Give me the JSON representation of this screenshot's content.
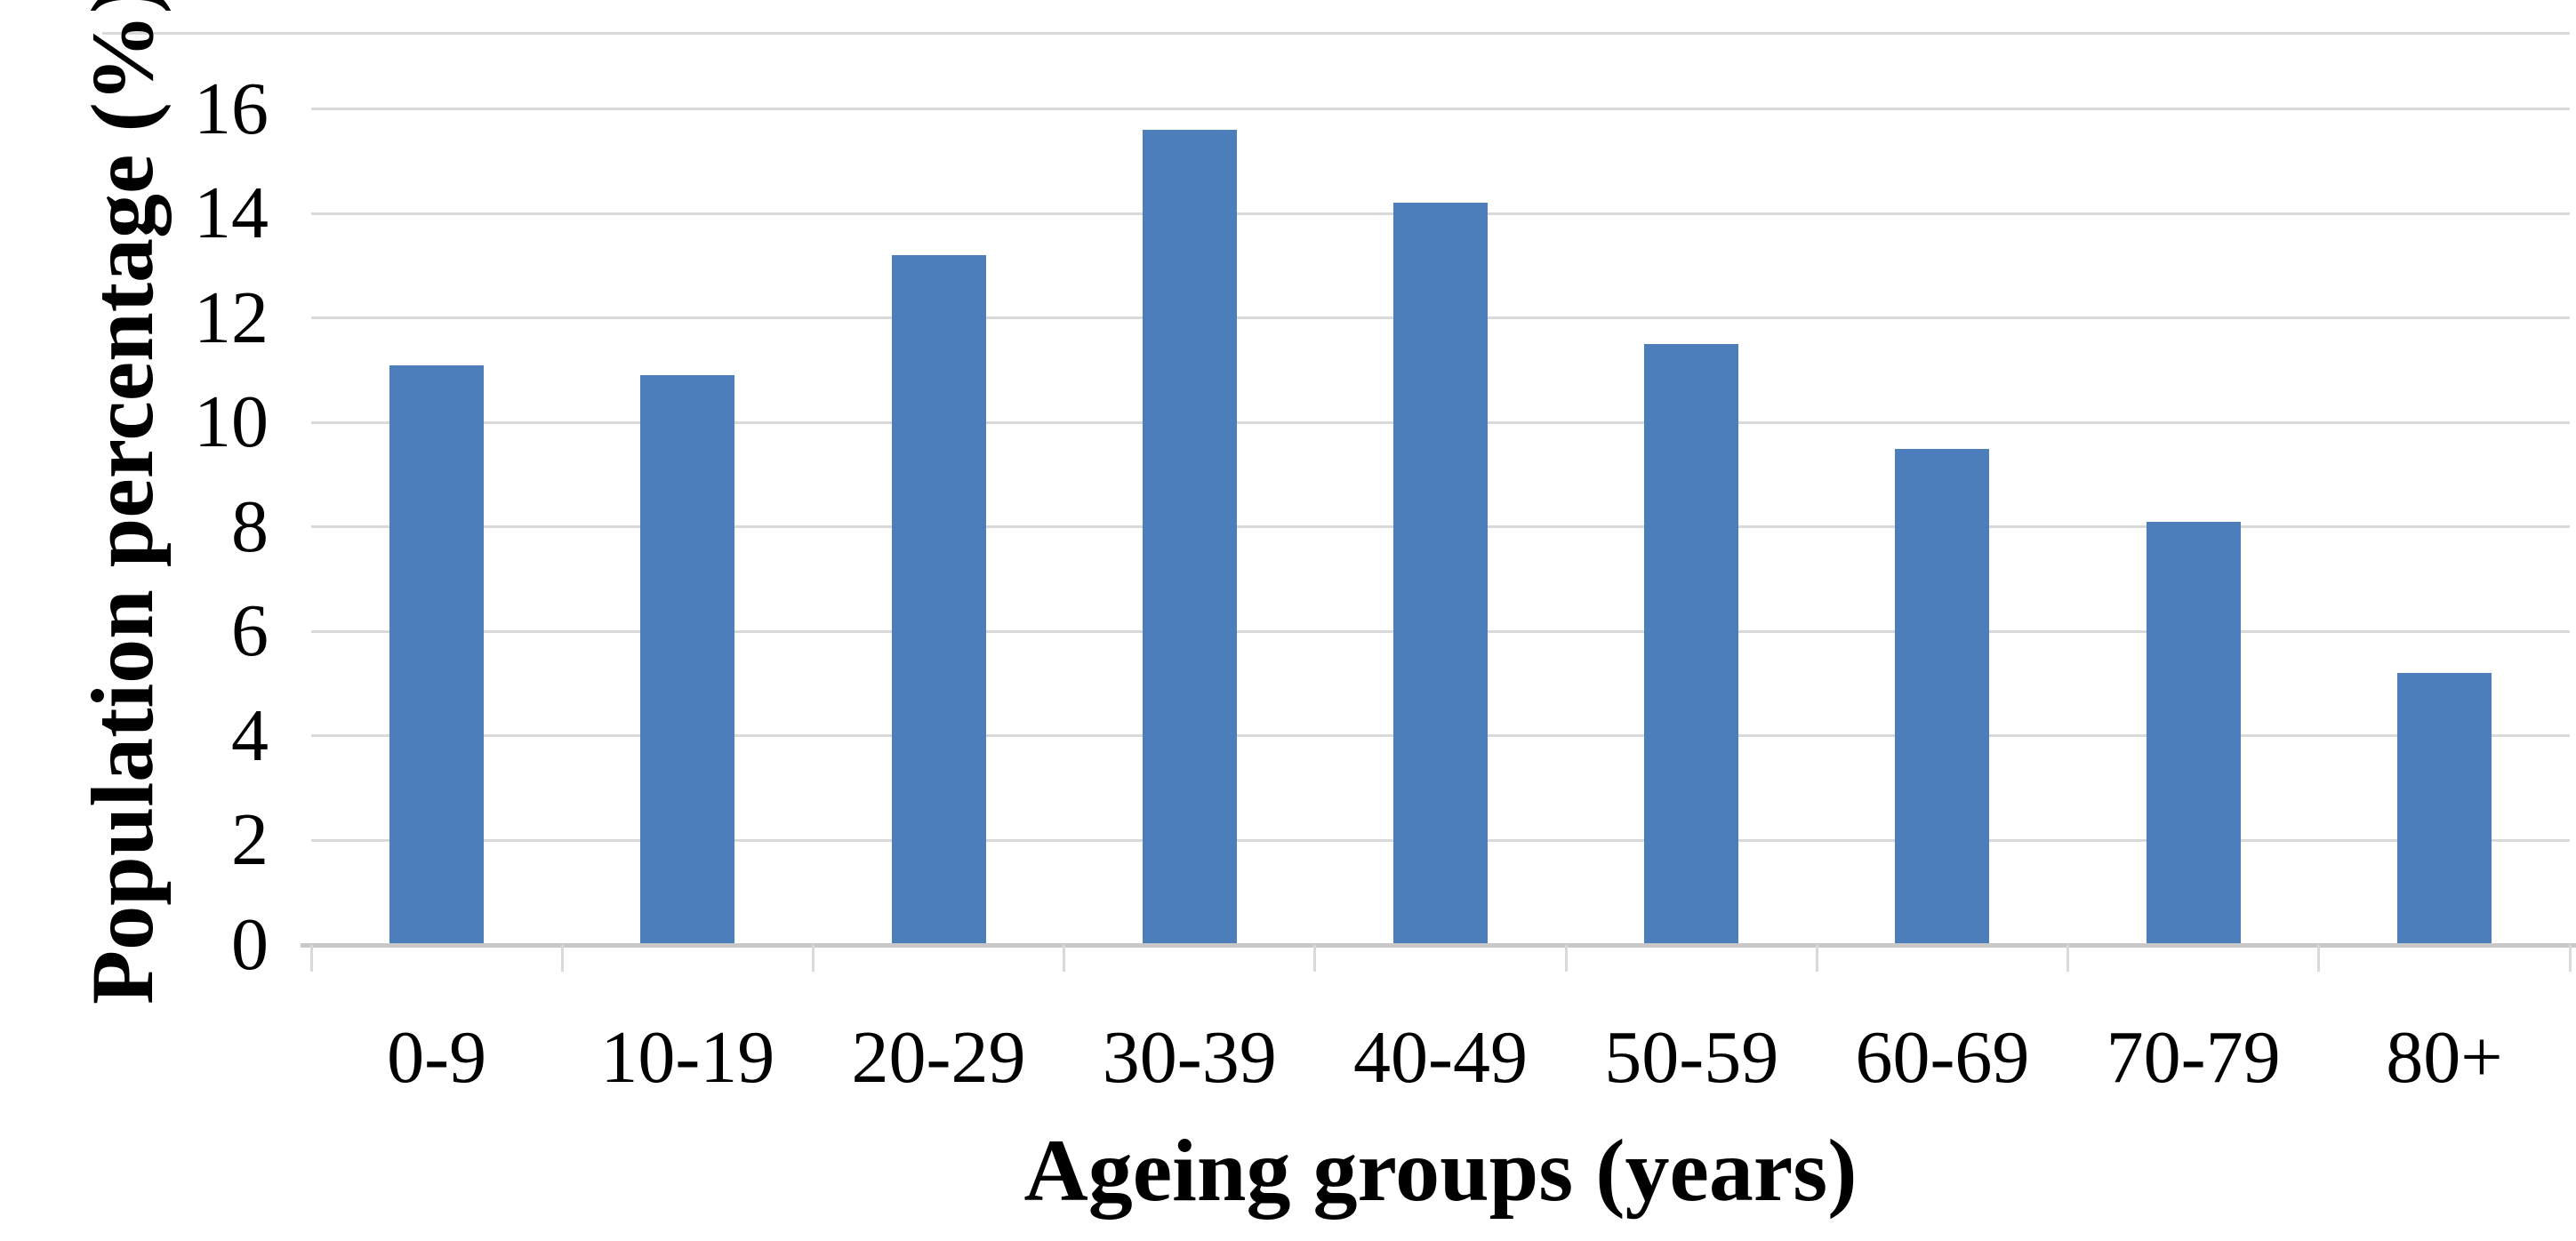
{
  "chart_data": {
    "type": "bar",
    "title": "",
    "categories": [
      "0-9",
      "10-19",
      "20-29",
      "30-39",
      "40-49",
      "50-59",
      "60-69",
      "70-79",
      "80+"
    ],
    "values": [
      11.1,
      10.9,
      13.2,
      15.6,
      14.2,
      11.5,
      9.5,
      8.1,
      5.2
    ],
    "xlabel": "Ageing groups (years)",
    "ylabel": "Population percentage (%)",
    "ylim": [
      0,
      16
    ],
    "yticks": [
      0,
      2,
      4,
      6,
      8,
      10,
      12,
      14,
      16
    ],
    "grid": "horizontal gridlines on, every 2 units",
    "legend": "none",
    "bar_color": "#4d7ebc",
    "gridline_color": "#d9d9d9",
    "axis_line_color": "#c9c7c7",
    "text_color": "#000000",
    "background_color": "#ffffff"
  }
}
